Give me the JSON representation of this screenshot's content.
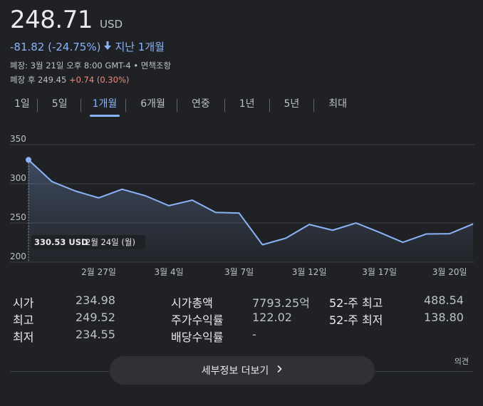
{
  "quote": {
    "price": "248.71",
    "currency": "USD",
    "change": "-81.82 (-24.75%)",
    "change_arrow": "down-arrow-icon",
    "period": "지난 1개월",
    "market_status": "폐장: 3월 21일 오후 8:00 GMT-4 • 면책조항",
    "after_hours_label": "폐장 후 249.45",
    "after_hours_change": "+0.74 (0.30%)"
  },
  "tabs": [
    {
      "label": "1일"
    },
    {
      "label": "5일"
    },
    {
      "label": "1개월",
      "active": true
    },
    {
      "label": "6개월"
    },
    {
      "label": "연중"
    },
    {
      "label": "1년"
    },
    {
      "label": "5년"
    },
    {
      "label": "최대"
    }
  ],
  "chart_data": {
    "type": "area",
    "x": [
      "2월 24일",
      "2월 25일",
      "2월 26일",
      "2월 27일",
      "2월 28일",
      "3월 3일",
      "3월 4일",
      "3월 5일",
      "3월 6일",
      "3월 7일",
      "3월 10일",
      "3월 11일",
      "3월 12일",
      "3월 13일",
      "3월 14일",
      "3월 17일",
      "3월 18일",
      "3월 19일",
      "3월 20일",
      "3월 21일"
    ],
    "values": [
      330.53,
      302.8,
      290.8,
      281.95,
      292.98,
      284.65,
      272.04,
      279.1,
      263.45,
      262.67,
      222.15,
      230.58,
      248.09,
      240.68,
      249.98,
      238.01,
      225.31,
      235.86,
      236.26,
      248.71
    ],
    "x_tick_labels": [
      {
        "label": "2월 27일",
        "index": 3
      },
      {
        "label": "3월 4일",
        "index": 6
      },
      {
        "label": "3월 7일",
        "index": 9
      },
      {
        "label": "3월 12일",
        "index": 12
      },
      {
        "label": "3월 17일",
        "index": 15
      },
      {
        "label": "3월 20일",
        "index": 18
      }
    ],
    "y_ticks": [
      350,
      300,
      250,
      200
    ],
    "ylim": [
      200,
      350
    ],
    "grid": true,
    "line_color": "#8ab4f8",
    "tooltip": {
      "value": "330.53 USD",
      "date": "2월 24일 (월)",
      "index": 0
    }
  },
  "stats": {
    "col1": [
      {
        "label": "시가",
        "value": "234.98"
      },
      {
        "label": "최고",
        "value": "249.52"
      },
      {
        "label": "최저",
        "value": "234.55"
      }
    ],
    "col2": [
      {
        "label": "시가총액",
        "value": "7793.25억"
      },
      {
        "label": "주가수익률",
        "value": "122.02"
      },
      {
        "label": "배당수익률",
        "value": "-"
      }
    ],
    "col3": [
      {
        "label": "52-주 최고",
        "value": "488.54"
      },
      {
        "label": "52-주 최저",
        "value": "138.80"
      }
    ]
  },
  "feedback_label": "의견",
  "more_button": {
    "label": "세부정보 더보기",
    "icon": "chevron-right-icon"
  }
}
